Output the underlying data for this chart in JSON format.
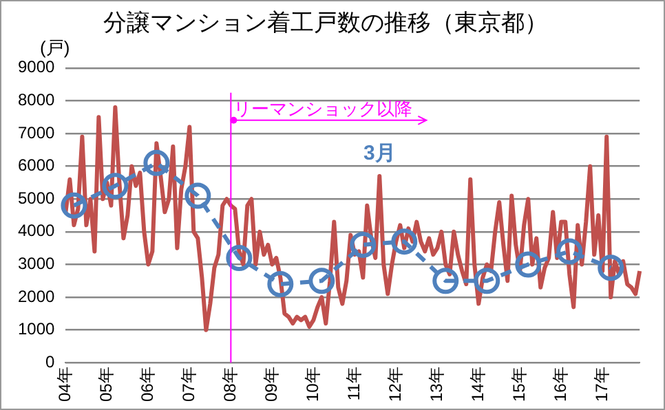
{
  "chart_data": {
    "type": "line",
    "title": "分譲マンション着工戸数の推移（東京都）",
    "ylabel": "(戸)",
    "categories": [
      "04年",
      null,
      null,
      null,
      null,
      null,
      null,
      null,
      null,
      null,
      "05年",
      null,
      null,
      null,
      null,
      null,
      null,
      null,
      null,
      null,
      "06年",
      null,
      null,
      null,
      null,
      null,
      null,
      null,
      null,
      null,
      "07年",
      null,
      null,
      null,
      null,
      null,
      null,
      null,
      null,
      null,
      "08年",
      null,
      null,
      null,
      null,
      null,
      null,
      null,
      null,
      null,
      "09年",
      null,
      null,
      null,
      null,
      null,
      null,
      null,
      null,
      null,
      "10年",
      null,
      null,
      null,
      null,
      null,
      null,
      null,
      null,
      null,
      "11年",
      null,
      null,
      null,
      null,
      null,
      null,
      null,
      null,
      null,
      "12年",
      null,
      null,
      null,
      null,
      null,
      null,
      null,
      null,
      null,
      "13年",
      null,
      null,
      null,
      null,
      null,
      null,
      null,
      null,
      null,
      "14年",
      null,
      null,
      null,
      null,
      null,
      null,
      null,
      null,
      null,
      "15年",
      null,
      null,
      null,
      null,
      null,
      null,
      null,
      null,
      null,
      "16年",
      null,
      null,
      null,
      null,
      null,
      null,
      null,
      null,
      null,
      "17年",
      null,
      null,
      null,
      null,
      null,
      null,
      null,
      null,
      null
    ],
    "ylim": [
      0,
      9000
    ],
    "yticks": [
      0,
      1000,
      2000,
      3000,
      4000,
      5000,
      6000,
      7000,
      8000,
      9000
    ],
    "grid": "y",
    "legend": false,
    "ref_lines": [
      {
        "axis": "x",
        "value": "08年",
        "label": "リーマンショック以降",
        "color": "#ff00ff"
      }
    ],
    "series": [
      {
        "color": "#c0504d",
        "marker": "none",
        "line_style": "solid",
        "values": [
          4600,
          5600,
          4200,
          4700,
          6900,
          4200,
          5000,
          3400,
          7500,
          5000,
          5500,
          4800,
          7800,
          5500,
          3800,
          4500,
          6000,
          5400,
          5800,
          4000,
          3000,
          3400,
          6700,
          5700,
          4600,
          5000,
          6600,
          3500,
          5300,
          6000,
          7200,
          4000,
          3800,
          2600,
          1000,
          1800,
          2900,
          3300,
          4800,
          5000,
          4800,
          4700,
          3400,
          3000,
          4800,
          5000,
          3000,
          4000,
          3300,
          3600,
          3000,
          3200,
          2600,
          1500,
          1400,
          1200,
          1400,
          1300,
          1400,
          1100,
          1300,
          1700,
          2000,
          1200,
          2500,
          4300,
          2300,
          1800,
          2500,
          3900,
          3300,
          3400,
          2600,
          4800,
          3800,
          3200,
          5700,
          3000,
          2100,
          3000,
          3700,
          4200,
          3500,
          4100,
          3700,
          4300,
          3700,
          3400,
          3800,
          3300,
          3500,
          4000,
          3000,
          2700,
          4000,
          3300,
          2800,
          2400,
          5600,
          3000,
          1800,
          2600,
          3000,
          2800,
          4000,
          4900,
          3600,
          2500,
          5100,
          3600,
          2800,
          4200,
          5000,
          3000,
          3800,
          2300,
          2900,
          3200,
          4600,
          3200,
          4300,
          4300,
          2700,
          1700,
          4200,
          3000,
          4300,
          6000,
          3300,
          4500,
          2800,
          6900,
          2000,
          3100,
          2700,
          3100,
          2400,
          2300,
          2100,
          2800
        ]
      },
      {
        "name": "3月",
        "color": "#4f81bd",
        "marker": "circle",
        "line_style": "dashed",
        "values": [
          null,
          null,
          4800,
          null,
          null,
          null,
          null,
          null,
          null,
          null,
          null,
          null,
          5400,
          null,
          null,
          null,
          null,
          null,
          null,
          null,
          null,
          null,
          6100,
          null,
          null,
          null,
          null,
          null,
          null,
          null,
          null,
          null,
          5100,
          null,
          null,
          null,
          null,
          null,
          null,
          null,
          null,
          null,
          3200,
          null,
          null,
          null,
          null,
          null,
          null,
          null,
          null,
          null,
          2400,
          null,
          null,
          null,
          null,
          null,
          null,
          null,
          null,
          null,
          2500,
          null,
          null,
          null,
          null,
          null,
          null,
          null,
          null,
          null,
          3600,
          null,
          null,
          null,
          null,
          null,
          null,
          null,
          null,
          null,
          3700,
          null,
          null,
          null,
          null,
          null,
          null,
          null,
          null,
          null,
          2500,
          null,
          null,
          null,
          null,
          null,
          null,
          null,
          null,
          null,
          2500,
          null,
          null,
          null,
          null,
          null,
          null,
          null,
          null,
          null,
          3000,
          null,
          null,
          null,
          null,
          null,
          null,
          null,
          null,
          null,
          3400,
          null,
          null,
          null,
          null,
          null,
          null,
          null,
          null,
          null,
          2900,
          null,
          null,
          null,
          null,
          null,
          null,
          null
        ]
      }
    ]
  }
}
